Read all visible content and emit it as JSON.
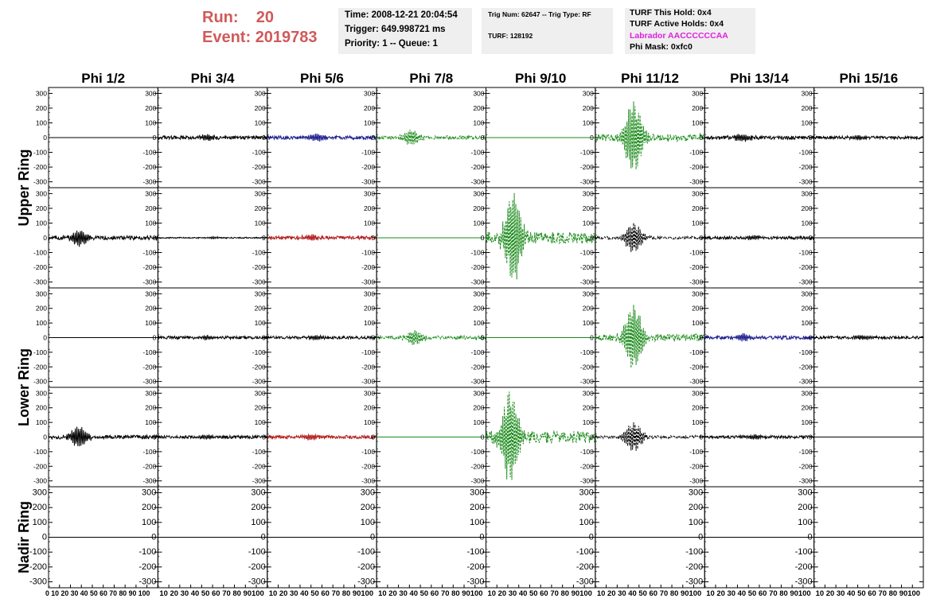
{
  "header": {
    "run_label": "Run:",
    "run_value": "20",
    "event_label": "Event:",
    "event_value": "2019783"
  },
  "info": {
    "time": "Time: 2008-12-21 20:04:54",
    "trigger": "Trigger: 649.998721 ms",
    "priority": "Priority: 1 -- Queue: 1",
    "trig_num": "Trig Num: 62647 -- Trig Type: RF",
    "turf": "TURF: 128192",
    "turf_this_hold": "TURF This Hold: 0x4",
    "turf_active_holds": "TURF Active Holds: 0x4",
    "labrador": "Labrador AACCCCCCAA",
    "phi_mask": "Phi Mask: 0xfc0"
  },
  "colors": {
    "header_red": "#d05a5a",
    "labrador_magenta": "#e020e0",
    "black": "#000000",
    "blue": "#1a1a8c",
    "red": "#b01818",
    "green": "#1a8a1a"
  },
  "chart_data": {
    "type": "line",
    "columns": [
      "Phi 1/2",
      "Phi 3/4",
      "Phi 5/6",
      "Phi 7/8",
      "Phi 9/10",
      "Phi 11/12",
      "Phi 13/14",
      "Phi 15/16"
    ],
    "ring_labels": [
      "Upper Ring",
      "Lower Ring",
      "Nadir Ring"
    ],
    "ylim": [
      -340,
      340
    ],
    "xlim": [
      0,
      100
    ],
    "yticks": [
      -300,
      -200,
      -100,
      0,
      100,
      200,
      300
    ],
    "xticks": [
      0,
      10,
      20,
      30,
      40,
      50,
      60,
      70,
      80,
      90,
      100
    ],
    "xtick_labels_concat": [
      "0 10 20 30 40 50 60 70 80 90 100",
      "10 20 30 40 50 60 70 80 90100",
      "10 20 30 40 50 60 70 80 90100",
      "10 20 30 40 50 60 70 80 90100",
      "10 20 30 40 50 60 70 80 90100",
      "10 20 30 40 50 60 70 80 90100",
      "10 20 30 40 50 60 70 80 90100",
      "10 20 30 40 50 60 70 80 90100"
    ],
    "grid": false,
    "rows": [
      [
        {
          "color": "black",
          "style": "solid",
          "amp": 0,
          "peak": 0,
          "peak_at": 0
        },
        {
          "color": "black",
          "style": "solid",
          "amp": 12,
          "peak": 20,
          "peak_at": 45
        },
        {
          "color": "blue",
          "style": "solid",
          "amp": 12,
          "peak": 25,
          "peak_at": 45
        },
        {
          "color": "green",
          "style": "dashed",
          "amp": 12,
          "peak": 50,
          "peak_at": 32
        },
        {
          "color": "green",
          "style": "solid",
          "amp": 0,
          "peak": 0,
          "peak_at": 0
        },
        {
          "color": "green",
          "style": "dashed",
          "amp": 25,
          "peak": 240,
          "peak_at": 35
        },
        {
          "color": "black",
          "style": "solid",
          "amp": 12,
          "peak": 25,
          "peak_at": 35
        },
        {
          "color": "black",
          "style": "solid",
          "amp": 10,
          "peak": 15,
          "peak_at": 40
        }
      ],
      [
        {
          "color": "black",
          "style": "solid",
          "amp": 14,
          "peak": 55,
          "peak_at": 28
        },
        {
          "color": "black",
          "style": "solid",
          "amp": 4,
          "peak": 6,
          "peak_at": 50
        },
        {
          "color": "red",
          "style": "solid",
          "amp": 12,
          "peak": 20,
          "peak_at": 40
        },
        {
          "color": "green",
          "style": "solid",
          "amp": 0,
          "peak": 0,
          "peak_at": 0
        },
        {
          "color": "green",
          "style": "dashed",
          "amp": 40,
          "peak": 300,
          "peak_at": 25
        },
        {
          "color": "black",
          "style": "dashed",
          "amp": 10,
          "peak": 100,
          "peak_at": 35
        },
        {
          "color": "black",
          "style": "solid",
          "amp": 10,
          "peak": 15,
          "peak_at": 45
        },
        {
          "color": "black",
          "style": "solid",
          "amp": 0,
          "peak": 0,
          "peak_at": 0
        }
      ],
      [
        {
          "color": "black",
          "style": "solid",
          "amp": 0,
          "peak": 0,
          "peak_at": 0
        },
        {
          "color": "black",
          "style": "solid",
          "amp": 10,
          "peak": 15,
          "peak_at": 45
        },
        {
          "color": "black",
          "style": "solid",
          "amp": 10,
          "peak": 15,
          "peak_at": 45
        },
        {
          "color": "green",
          "style": "dashed",
          "amp": 12,
          "peak": 50,
          "peak_at": 35
        },
        {
          "color": "green",
          "style": "solid",
          "amp": 0,
          "peak": 0,
          "peak_at": 0
        },
        {
          "color": "green",
          "style": "dashed",
          "amp": 25,
          "peak": 220,
          "peak_at": 35
        },
        {
          "color": "blue",
          "style": "solid",
          "amp": 12,
          "peak": 25,
          "peak_at": 35
        },
        {
          "color": "black",
          "style": "solid",
          "amp": 10,
          "peak": 15,
          "peak_at": 45
        }
      ],
      [
        {
          "color": "black",
          "style": "solid",
          "amp": 14,
          "peak": 70,
          "peak_at": 28
        },
        {
          "color": "black",
          "style": "solid",
          "amp": 10,
          "peak": 15,
          "peak_at": 45
        },
        {
          "color": "red",
          "style": "solid",
          "amp": 12,
          "peak": 20,
          "peak_at": 40
        },
        {
          "color": "green",
          "style": "solid",
          "amp": 0,
          "peak": 0,
          "peak_at": 0
        },
        {
          "color": "green",
          "style": "dashed",
          "amp": 40,
          "peak": 320,
          "peak_at": 22
        },
        {
          "color": "black",
          "style": "dashed",
          "amp": 10,
          "peak": 100,
          "peak_at": 35
        },
        {
          "color": "black",
          "style": "solid",
          "amp": 10,
          "peak": 15,
          "peak_at": 45
        },
        {
          "color": "black",
          "style": "solid",
          "amp": 0,
          "peak": 0,
          "peak_at": 0
        }
      ],
      [
        {
          "color": "black",
          "style": "solid",
          "amp": 0,
          "peak": 0,
          "peak_at": 0
        },
        {
          "color": "black",
          "style": "solid",
          "amp": 0,
          "peak": 0,
          "peak_at": 0
        },
        {
          "color": "black",
          "style": "solid",
          "amp": 0,
          "peak": 0,
          "peak_at": 0
        },
        {
          "color": "black",
          "style": "solid",
          "amp": 0,
          "peak": 0,
          "peak_at": 0
        },
        {
          "color": "black",
          "style": "solid",
          "amp": 0,
          "peak": 0,
          "peak_at": 0
        },
        {
          "color": "black",
          "style": "solid",
          "amp": 0,
          "peak": 0,
          "peak_at": 0
        },
        {
          "color": "black",
          "style": "solid",
          "amp": 0,
          "peak": 0,
          "peak_at": 0
        },
        {
          "color": "black",
          "style": "solid",
          "amp": 0,
          "peak": 0,
          "peak_at": 0
        }
      ]
    ]
  }
}
